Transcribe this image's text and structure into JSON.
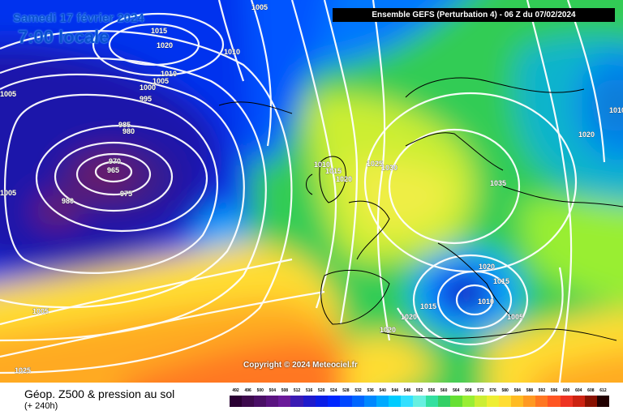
{
  "date_label": "Samedi 17 février 2024",
  "time_label": "7:00 locale",
  "header": "Ensemble GEFS  (Perturbation 4)  -  06 Z du 07/02/2024",
  "copyright": "Copyright © 2024 Meteociel.fr",
  "title": "Géop. Z500 & pression au sol",
  "forecast_step": "(+ 240h)",
  "isobar_labels": [
    "1005",
    "1015",
    "1020",
    "1010",
    "1010",
    "1005",
    "1000",
    "995",
    "1005",
    "985",
    "980",
    "970",
    "965",
    "975",
    "980",
    "1005",
    "1010",
    "1015",
    "1020",
    "1025",
    "1030",
    "1035",
    "1020",
    "1020",
    "1015",
    "1010",
    "1015",
    "1005",
    "1020",
    "1020",
    "1005",
    "1025",
    "1010"
  ],
  "scale": {
    "values": [
      "492",
      "496",
      "500",
      "504",
      "508",
      "512",
      "516",
      "520",
      "524",
      "528",
      "532",
      "536",
      "540",
      "544",
      "548",
      "552",
      "556",
      "560",
      "564",
      "568",
      "572",
      "576",
      "580",
      "584",
      "588",
      "592",
      "596",
      "600",
      "604",
      "608",
      "612"
    ],
    "colors": [
      "#2a0033",
      "#3d0a4d",
      "#4a0f66",
      "#5a1380",
      "#6a1a99",
      "#3a1ab3",
      "#1f1acc",
      "#0a1de6",
      "#0026ff",
      "#0047ff",
      "#0066ff",
      "#0088ff",
      "#00aaff",
      "#00ccff",
      "#33e0ff",
      "#66f0e0",
      "#33e0a0",
      "#33d066",
      "#66e033",
      "#99ee33",
      "#ccee33",
      "#eeee33",
      "#ffdd33",
      "#ffbb22",
      "#ff9922",
      "#ff7722",
      "#ff5522",
      "#ee3322",
      "#cc2211",
      "#881100",
      "#220000"
    ]
  }
}
